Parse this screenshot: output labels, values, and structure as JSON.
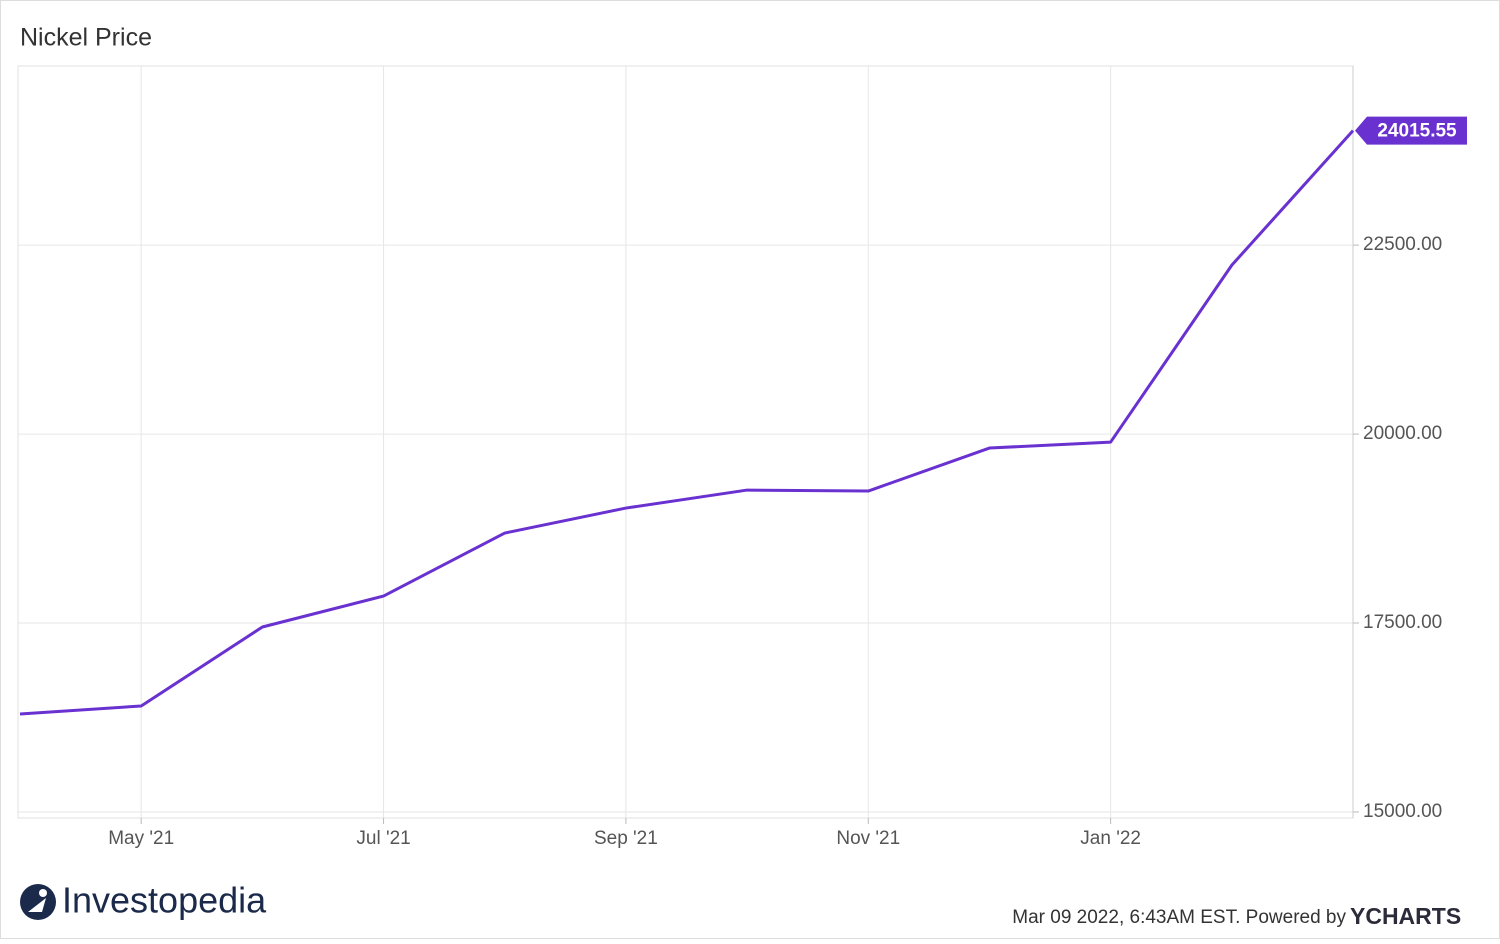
{
  "chart_data": {
    "type": "line",
    "title": "Nickel Price",
    "categories": [
      null,
      "May '21",
      null,
      "Jul '21",
      null,
      "Sep '21",
      null,
      "Nov '21",
      null,
      "Jan '22",
      null,
      null
    ],
    "series": [
      {
        "name": "Nickel Price",
        "color": "#6a31d1",
        "values": [
          16296,
          16402,
          17447,
          17857,
          18690,
          19021,
          19259,
          19246,
          19815,
          19894,
          22235,
          24015.55
        ]
      }
    ],
    "ylim": [
      14920,
      24870
    ],
    "yticks": [
      {
        "value": 15000,
        "label": "15000.00"
      },
      {
        "value": 17500,
        "label": "17500.00"
      },
      {
        "value": 20000,
        "label": "20000.00"
      },
      {
        "value": 22500,
        "label": "22500.00"
      }
    ],
    "grid": true
  },
  "footer": {
    "logo": "Investopedia",
    "timestamp": "Mar 09 2022, 6:43AM EST. Powered by",
    "brand": "YCHARTS"
  }
}
